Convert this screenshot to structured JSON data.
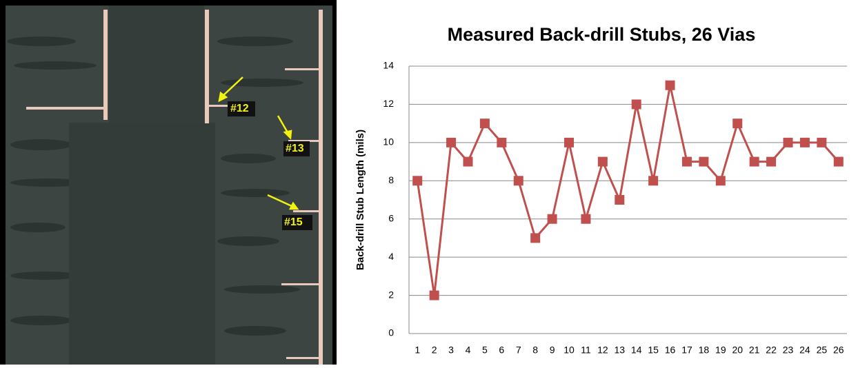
{
  "chart_data": {
    "type": "line",
    "title": "Measured Back-drill Stubs, 26 Vias",
    "y_label": "Back-drill Stub Length (mils)",
    "categories": [
      "1",
      "2",
      "3",
      "4",
      "5",
      "6",
      "7",
      "8",
      "9",
      "10",
      "11",
      "12",
      "13",
      "14",
      "15",
      "16",
      "17",
      "18",
      "19",
      "20",
      "21",
      "22",
      "23",
      "24",
      "25",
      "26"
    ],
    "series": [
      {
        "color": "#c0504d",
        "values": [
          8,
          2,
          10,
          9,
          11,
          10,
          8,
          5,
          6,
          10,
          6,
          9,
          7,
          12,
          8,
          13,
          9,
          9,
          8,
          11,
          9,
          9,
          10,
          10,
          10,
          9
        ]
      }
    ],
    "ylim": [
      0,
      14
    ],
    "yticks": [
      0,
      2,
      4,
      6,
      8,
      10,
      12,
      14
    ],
    "grid": true
  },
  "photo_labels": [
    "#12",
    "#13",
    "#15"
  ]
}
